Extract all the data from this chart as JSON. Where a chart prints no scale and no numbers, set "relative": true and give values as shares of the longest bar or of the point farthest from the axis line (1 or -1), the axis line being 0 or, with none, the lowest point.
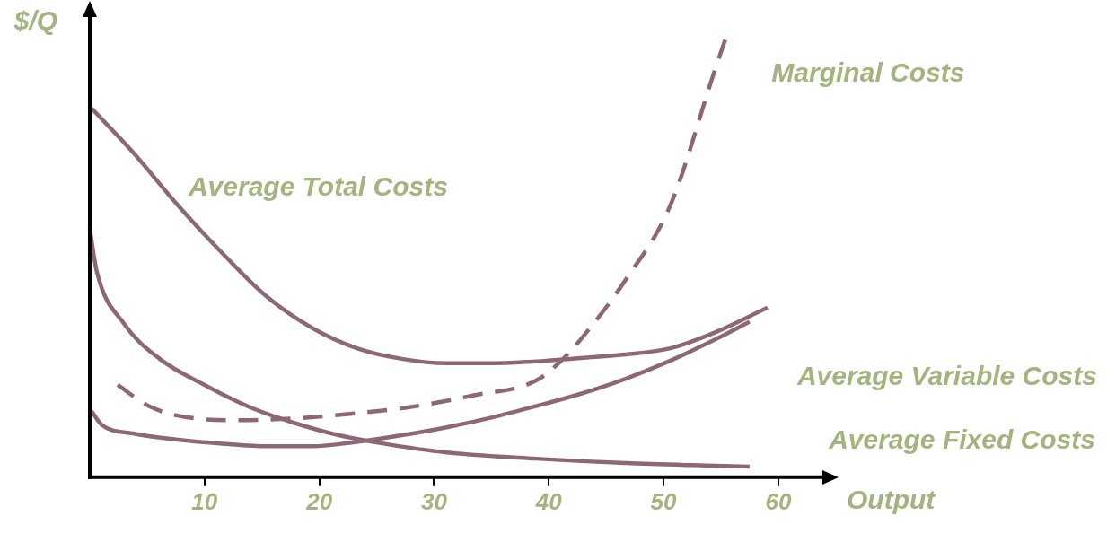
{
  "chart_data": {
    "type": "line",
    "relative": true,
    "xlabel": "Output",
    "ylabel": "$/Q",
    "xlim": [
      0,
      64
    ],
    "xticks": [
      10,
      20,
      30,
      40,
      50,
      60
    ],
    "grid": false,
    "legend": false,
    "marker": "none",
    "series": [
      {
        "name": "Marginal Costs",
        "color": "#8c6877",
        "line_style": "dashed",
        "x": [
          2.42,
          5.31,
          9.22,
          13.13,
          17.8,
          23.28,
          27.97,
          33.4,
          38.9,
          41.25,
          43.6,
          46.7,
          50.6,
          54.5,
          55.5
        ],
        "values": [
          0.209,
          0.159,
          0.133,
          0.129,
          0.133,
          0.145,
          0.159,
          0.185,
          0.219,
          0.268,
          0.338,
          0.447,
          0.616,
          0.924,
          1.0
        ]
      },
      {
        "name": "Average Total Costs",
        "color": "#8c6877",
        "line_style": "solid",
        "x": [
          0.16,
          3.75,
          7.66,
          11.56,
          15.47,
          19.38,
          23.28,
          27.19,
          31.09,
          35.0,
          38.9,
          42.8,
          46.7,
          50.6,
          54.5,
          59.06
        ],
        "values": [
          0.835,
          0.736,
          0.616,
          0.507,
          0.408,
          0.338,
          0.292,
          0.268,
          0.258,
          0.258,
          0.262,
          0.27,
          0.278,
          0.292,
          0.328,
          0.384
        ]
      },
      {
        "name": "Average Variable Costs",
        "color": "#8c6877",
        "line_style": "solid",
        "x": [
          0.16,
          1.02,
          3.75,
          7.66,
          11.56,
          15.47,
          19.38,
          23.28,
          27.19,
          31.09,
          35.0,
          38.9,
          42.8,
          46.7,
          50.6,
          54.5,
          57.5
        ],
        "values": [
          0.149,
          0.119,
          0.099,
          0.085,
          0.076,
          0.07,
          0.07,
          0.08,
          0.095,
          0.113,
          0.135,
          0.161,
          0.189,
          0.223,
          0.264,
          0.312,
          0.352
        ]
      },
      {
        "name": "Average Fixed Costs",
        "color": "#8c6877",
        "line_style": "solid",
        "x": [
          0,
          0.6,
          2.97,
          6.09,
          10.0,
          13.9,
          17.8,
          21.7,
          25.6,
          31.1,
          38.9,
          46.7,
          54.5,
          57.5
        ],
        "values": [
          0.563,
          0.467,
          0.348,
          0.268,
          0.209,
          0.159,
          0.123,
          0.095,
          0.076,
          0.056,
          0.042,
          0.032,
          0.026,
          0.024
        ]
      }
    ]
  }
}
